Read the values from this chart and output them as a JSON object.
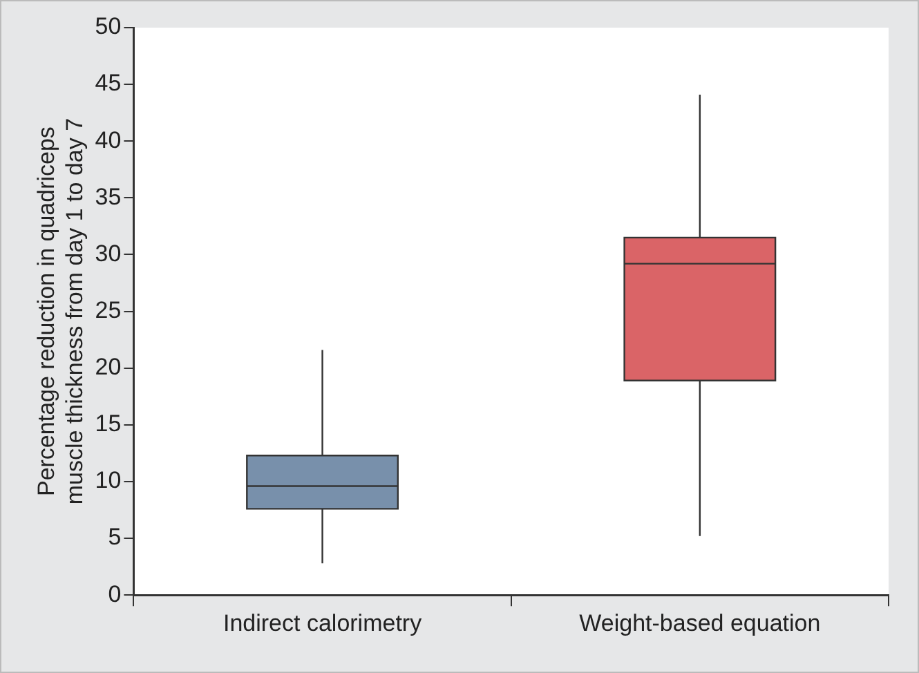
{
  "chart_data": {
    "type": "box",
    "ylabel": "Percentage reduction in quadriceps muscle thickness from day 1 to day 7",
    "categories": [
      "Indirect calorimetry",
      "Weight-based equation"
    ],
    "boxes": [
      {
        "low": 2.8,
        "q1": 7.6,
        "median": 9.6,
        "q3": 12.3,
        "high": 21.6
      },
      {
        "low": 5.2,
        "q1": 18.9,
        "median": 29.2,
        "q3": 31.5,
        "high": 44.1
      }
    ],
    "colors": [
      "#7890ab",
      "#da6467"
    ],
    "ylim": [
      0,
      50
    ],
    "yticks": [
      0,
      5,
      10,
      15,
      20,
      25,
      30,
      35,
      40,
      45,
      50
    ],
    "grid": false,
    "legend": false
  }
}
